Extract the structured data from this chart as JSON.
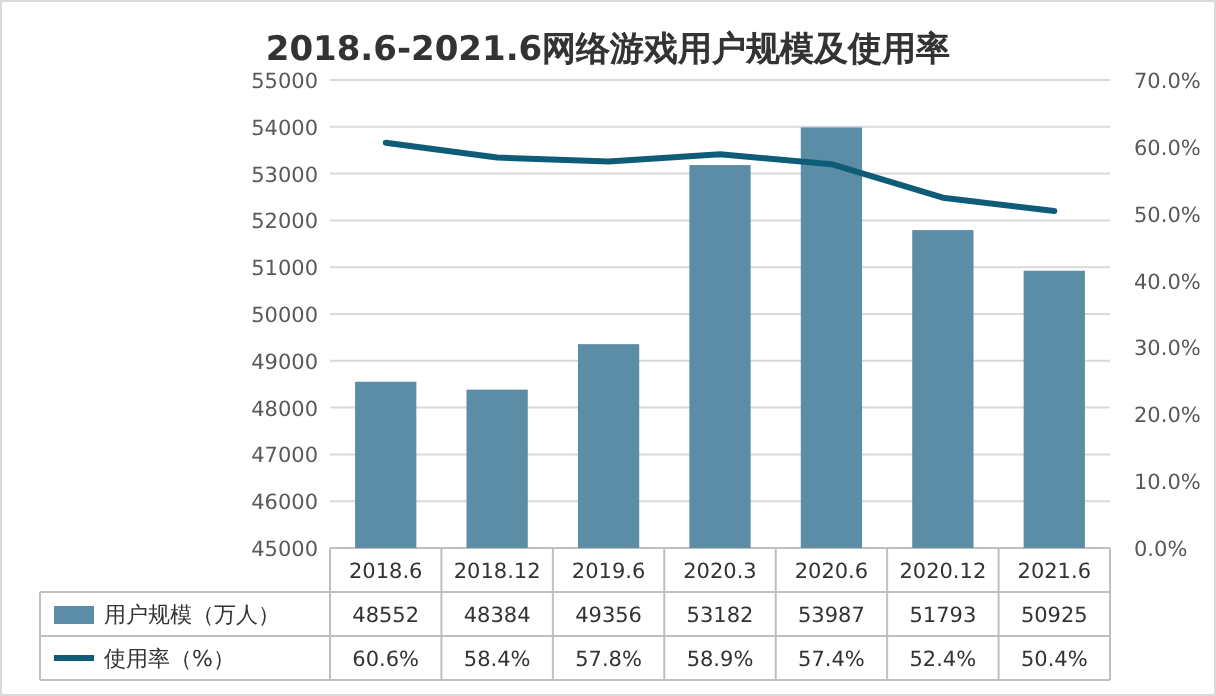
{
  "chart_data": {
    "type": "bar",
    "title": "2018.6-2021.6网络游戏用户规模及使用率",
    "categories": [
      "2018.6",
      "2018.12",
      "2019.6",
      "2020.3",
      "2020.6",
      "2020.12",
      "2021.6"
    ],
    "series": [
      {
        "name": "用户规模（万人）",
        "color": "#5b8ea6",
        "values": [
          48552,
          48384,
          49356,
          53182,
          53987,
          51793,
          50925
        ],
        "value_labels": [
          "48552",
          "48384",
          "49356",
          "53182",
          "53987",
          "51793",
          "50925"
        ]
      },
      {
        "name": "使用率（%）",
        "type": "line",
        "axis": "y2",
        "color": "#0e5c78",
        "values": [
          60.6,
          58.4,
          57.8,
          58.9,
          57.4,
          52.4,
          50.4
        ],
        "value_labels": [
          "60.6%",
          "58.4%",
          "57.8%",
          "58.9%",
          "57.4%",
          "52.4%",
          "50.4%"
        ]
      }
    ],
    "ylim": [
      45000,
      55000
    ],
    "yticks": [
      45000,
      46000,
      47000,
      48000,
      49000,
      50000,
      51000,
      52000,
      53000,
      54000,
      55000
    ],
    "y2lim": [
      0,
      70
    ],
    "y2ticks": [
      {
        "value": 0,
        "label": "0.0%"
      },
      {
        "value": 10,
        "label": "10.0%"
      },
      {
        "value": 20,
        "label": "20.0%"
      },
      {
        "value": 30,
        "label": "30.0%"
      },
      {
        "value": 40,
        "label": "40.0%"
      },
      {
        "value": 50,
        "label": "50.0%"
      },
      {
        "value": 60,
        "label": "60.0%"
      },
      {
        "value": 70,
        "label": "70.0%"
      }
    ],
    "grid": "y",
    "legend": "bottom",
    "marker": "none",
    "line_style": "solid"
  }
}
